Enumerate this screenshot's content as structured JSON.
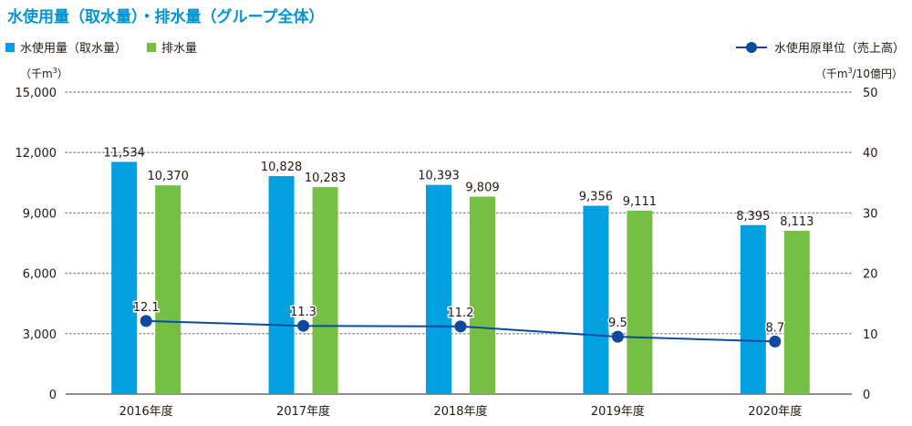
{
  "header": {
    "title": "水使用量（取水量）・排水量（グループ全体）"
  },
  "legend": {
    "intake_label": "水使用量（取水量）",
    "discharge_label": "排水量",
    "intensity_label": "水使用原単位（売上高）"
  },
  "axes": {
    "left_unit_pre": "（千m",
    "left_unit_sup": "3",
    "left_unit_post": "）",
    "right_unit_pre": "（千m",
    "right_unit_sup": "3",
    "right_unit_post": "/10億円）"
  },
  "colors": {
    "intake": "#00a0e1",
    "discharge": "#75bf44",
    "intensity": "#0d4a9c",
    "grid": "#8c8c8c"
  },
  "chart_data": {
    "type": "bar",
    "title": "水使用量（取水量）・排水量（グループ全体）",
    "categories": [
      "2016年度",
      "2017年度",
      "2018年度",
      "2019年度",
      "2020年度"
    ],
    "series": [
      {
        "name": "水使用量（取水量）",
        "type": "bar",
        "axis": "left",
        "values": [
          11534,
          10828,
          10393,
          9356,
          8395
        ],
        "labels": [
          "11,534",
          "10,828",
          "10,393",
          "9,356",
          "8,395"
        ]
      },
      {
        "name": "排水量",
        "type": "bar",
        "axis": "left",
        "values": [
          10370,
          10283,
          9809,
          9111,
          8113
        ],
        "labels": [
          "10,370",
          "10,283",
          "9,809",
          "9,111",
          "8,113"
        ]
      },
      {
        "name": "水使用原単位（売上高）",
        "type": "line",
        "axis": "right",
        "values": [
          12.1,
          11.3,
          11.2,
          9.5,
          8.7
        ],
        "labels": [
          "12.1",
          "11.3",
          "11.2",
          "9.5",
          "8.7"
        ]
      }
    ],
    "ylim_left": [
      0,
      15000
    ],
    "yticks_left": [
      "0",
      "3,000",
      "6,000",
      "9,000",
      "12,000",
      "15,000"
    ],
    "ylim_right": [
      0,
      50
    ],
    "yticks_right": [
      "0",
      "10",
      "20",
      "30",
      "40",
      "50"
    ],
    "grid": true,
    "legend_position": "top"
  }
}
